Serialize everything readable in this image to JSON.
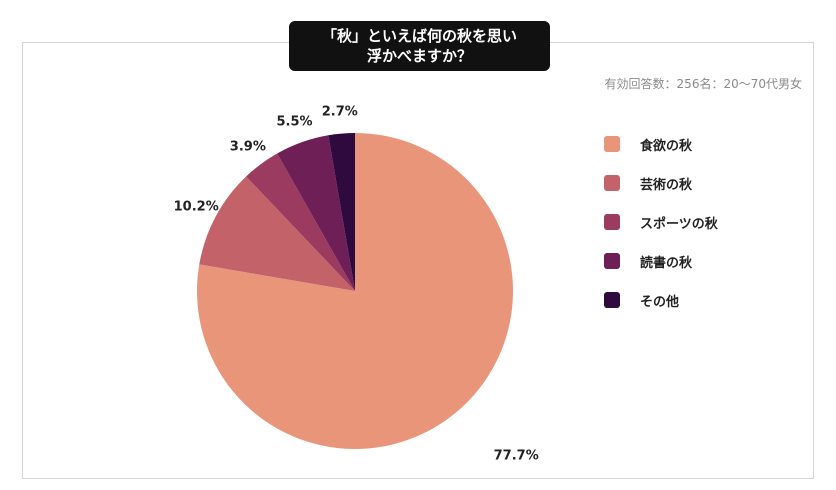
{
  "chart_data": {
    "type": "pie",
    "title_lines": [
      "「秋」といえば何の秋を思い",
      "浮かべますか？"
    ],
    "note": "有効回答数：256名：20〜70代男女",
    "slices": [
      {
        "label": "食欲の秋",
        "value": 77.7,
        "display": "77.7%",
        "color": "#e8957a"
      },
      {
        "label": "芸術の秋",
        "value": 10.2,
        "display": "10.2%",
        "color": "#c4626a"
      },
      {
        "label": "スポーツの秋",
        "value": 3.9,
        "display": "3.9%",
        "color": "#9c3b60"
      },
      {
        "label": "読書の秋",
        "value": 5.5,
        "display": "5.5%",
        "color": "#6e1f55"
      },
      {
        "label": "その他",
        "value": 2.7,
        "display": "2.7%",
        "color": "#2e0a3f"
      }
    ]
  }
}
